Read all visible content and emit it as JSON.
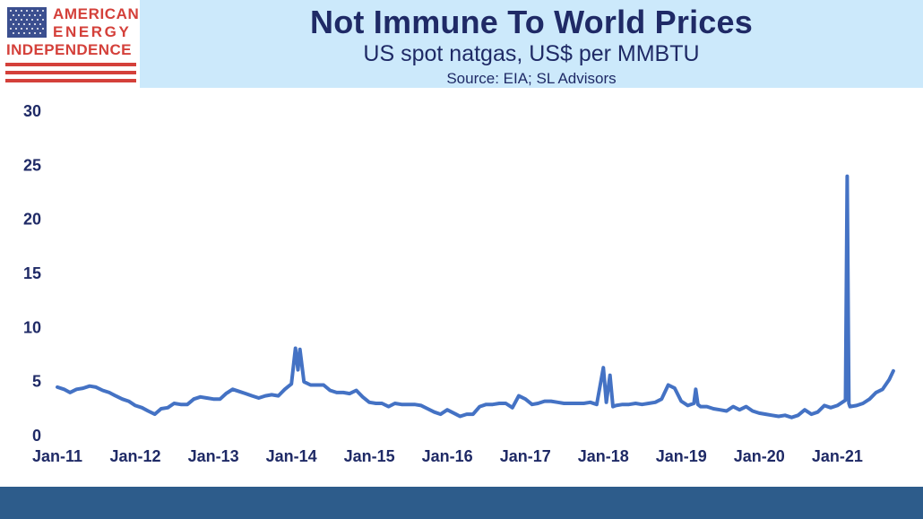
{
  "header": {
    "title": "Not Immune To World Prices",
    "subtitle": "US spot natgas, US$ per MMBTU",
    "source": "Source: EIA; SL Advisors"
  },
  "logo": {
    "line1": "AMERICAN",
    "line2": "ENERGY",
    "line3": "INDEPENDENCE",
    "flag_icon": "us-flag-icon"
  },
  "colors": {
    "series": "#4472c4",
    "header_band": "#cce9fb",
    "footer_band": "#2d5c8b",
    "text": "#1f2a66",
    "logo_red": "#d4403a"
  },
  "chart_data": {
    "type": "line",
    "title": "Not Immune To World Prices",
    "subtitle": "US spot natgas, US$ per MMBTU",
    "xlabel": "",
    "ylabel": "",
    "ylim": [
      0,
      30
    ],
    "y_ticks": [
      0,
      5,
      10,
      15,
      20,
      25,
      30
    ],
    "x_ticks": [
      "Jan-11",
      "Jan-12",
      "Jan-13",
      "Jan-14",
      "Jan-15",
      "Jan-16",
      "Jan-17",
      "Jan-18",
      "Jan-19",
      "Jan-20",
      "Jan-21"
    ],
    "grid": false,
    "legend": "none",
    "series": [
      {
        "values": [
          [
            "2011-01-01",
            4.4
          ],
          [
            "2011-02-01",
            4.2
          ],
          [
            "2011-03-01",
            3.9
          ],
          [
            "2011-04-01",
            4.2
          ],
          [
            "2011-05-01",
            4.3
          ],
          [
            "2011-06-01",
            4.5
          ],
          [
            "2011-07-01",
            4.4
          ],
          [
            "2011-08-01",
            4.1
          ],
          [
            "2011-09-01",
            3.9
          ],
          [
            "2011-10-01",
            3.6
          ],
          [
            "2011-11-01",
            3.3
          ],
          [
            "2011-12-01",
            3.1
          ],
          [
            "2012-01-01",
            2.7
          ],
          [
            "2012-02-01",
            2.5
          ],
          [
            "2012-03-01",
            2.2
          ],
          [
            "2012-04-01",
            1.9
          ],
          [
            "2012-05-01",
            2.4
          ],
          [
            "2012-06-01",
            2.5
          ],
          [
            "2012-07-01",
            2.9
          ],
          [
            "2012-08-01",
            2.8
          ],
          [
            "2012-09-01",
            2.8
          ],
          [
            "2012-10-01",
            3.3
          ],
          [
            "2012-11-01",
            3.5
          ],
          [
            "2012-12-01",
            3.4
          ],
          [
            "2013-01-01",
            3.3
          ],
          [
            "2013-02-01",
            3.3
          ],
          [
            "2013-03-01",
            3.8
          ],
          [
            "2013-04-01",
            4.2
          ],
          [
            "2013-05-01",
            4.0
          ],
          [
            "2013-06-01",
            3.8
          ],
          [
            "2013-07-01",
            3.6
          ],
          [
            "2013-08-01",
            3.4
          ],
          [
            "2013-09-01",
            3.6
          ],
          [
            "2013-10-01",
            3.7
          ],
          [
            "2013-11-01",
            3.6
          ],
          [
            "2013-12-01",
            4.2
          ],
          [
            "2014-01-01",
            4.7
          ],
          [
            "2014-01-20",
            8.0
          ],
          [
            "2014-02-01",
            6.0
          ],
          [
            "2014-02-10",
            7.9
          ],
          [
            "2014-03-01",
            4.9
          ],
          [
            "2014-04-01",
            4.6
          ],
          [
            "2014-05-01",
            4.6
          ],
          [
            "2014-06-01",
            4.6
          ],
          [
            "2014-07-01",
            4.1
          ],
          [
            "2014-08-01",
            3.9
          ],
          [
            "2014-09-01",
            3.9
          ],
          [
            "2014-10-01",
            3.8
          ],
          [
            "2014-11-01",
            4.1
          ],
          [
            "2014-12-01",
            3.5
          ],
          [
            "2015-01-01",
            3.0
          ],
          [
            "2015-02-01",
            2.9
          ],
          [
            "2015-03-01",
            2.9
          ],
          [
            "2015-04-01",
            2.6
          ],
          [
            "2015-05-01",
            2.9
          ],
          [
            "2015-06-01",
            2.8
          ],
          [
            "2015-07-01",
            2.8
          ],
          [
            "2015-08-01",
            2.8
          ],
          [
            "2015-09-01",
            2.7
          ],
          [
            "2015-10-01",
            2.4
          ],
          [
            "2015-11-01",
            2.1
          ],
          [
            "2015-12-01",
            1.9
          ],
          [
            "2016-01-01",
            2.3
          ],
          [
            "2016-02-01",
            2.0
          ],
          [
            "2016-03-01",
            1.7
          ],
          [
            "2016-04-01",
            1.9
          ],
          [
            "2016-05-01",
            1.9
          ],
          [
            "2016-06-01",
            2.6
          ],
          [
            "2016-07-01",
            2.8
          ],
          [
            "2016-08-01",
            2.8
          ],
          [
            "2016-09-01",
            2.9
          ],
          [
            "2016-10-01",
            2.9
          ],
          [
            "2016-11-01",
            2.5
          ],
          [
            "2016-12-01",
            3.6
          ],
          [
            "2017-01-01",
            3.3
          ],
          [
            "2017-02-01",
            2.8
          ],
          [
            "2017-03-01",
            2.9
          ],
          [
            "2017-04-01",
            3.1
          ],
          [
            "2017-05-01",
            3.1
          ],
          [
            "2017-06-01",
            3.0
          ],
          [
            "2017-07-01",
            2.9
          ],
          [
            "2017-08-01",
            2.9
          ],
          [
            "2017-09-01",
            2.9
          ],
          [
            "2017-10-01",
            2.9
          ],
          [
            "2017-11-01",
            3.0
          ],
          [
            "2017-12-01",
            2.8
          ],
          [
            "2018-01-01",
            6.2
          ],
          [
            "2018-01-15",
            3.0
          ],
          [
            "2018-02-01",
            5.5
          ],
          [
            "2018-02-15",
            2.6
          ],
          [
            "2018-03-01",
            2.7
          ],
          [
            "2018-04-01",
            2.8
          ],
          [
            "2018-05-01",
            2.8
          ],
          [
            "2018-06-01",
            2.9
          ],
          [
            "2018-07-01",
            2.8
          ],
          [
            "2018-08-01",
            2.9
          ],
          [
            "2018-09-01",
            3.0
          ],
          [
            "2018-10-01",
            3.3
          ],
          [
            "2018-11-01",
            4.6
          ],
          [
            "2018-12-01",
            4.3
          ],
          [
            "2019-01-01",
            3.1
          ],
          [
            "2019-02-01",
            2.7
          ],
          [
            "2019-03-01",
            2.9
          ],
          [
            "2019-03-10",
            4.2
          ],
          [
            "2019-03-20",
            2.8
          ],
          [
            "2019-04-01",
            2.6
          ],
          [
            "2019-05-01",
            2.6
          ],
          [
            "2019-06-01",
            2.4
          ],
          [
            "2019-07-01",
            2.3
          ],
          [
            "2019-08-01",
            2.2
          ],
          [
            "2019-09-01",
            2.6
          ],
          [
            "2019-10-01",
            2.3
          ],
          [
            "2019-11-01",
            2.6
          ],
          [
            "2019-12-01",
            2.2
          ],
          [
            "2020-01-01",
            2.0
          ],
          [
            "2020-02-01",
            1.9
          ],
          [
            "2020-03-01",
            1.8
          ],
          [
            "2020-04-01",
            1.7
          ],
          [
            "2020-05-01",
            1.8
          ],
          [
            "2020-06-01",
            1.6
          ],
          [
            "2020-07-01",
            1.8
          ],
          [
            "2020-08-01",
            2.3
          ],
          [
            "2020-09-01",
            1.9
          ],
          [
            "2020-10-01",
            2.1
          ],
          [
            "2020-11-01",
            2.7
          ],
          [
            "2020-12-01",
            2.5
          ],
          [
            "2021-01-01",
            2.7
          ],
          [
            "2021-02-08",
            3.2
          ],
          [
            "2021-02-16",
            23.9
          ],
          [
            "2021-02-24",
            2.9
          ],
          [
            "2021-03-01",
            2.6
          ],
          [
            "2021-04-01",
            2.7
          ],
          [
            "2021-05-01",
            2.9
          ],
          [
            "2021-06-01",
            3.3
          ],
          [
            "2021-07-01",
            3.9
          ],
          [
            "2021-08-01",
            4.2
          ],
          [
            "2021-09-01",
            5.1
          ],
          [
            "2021-09-20",
            5.9
          ]
        ]
      }
    ]
  }
}
